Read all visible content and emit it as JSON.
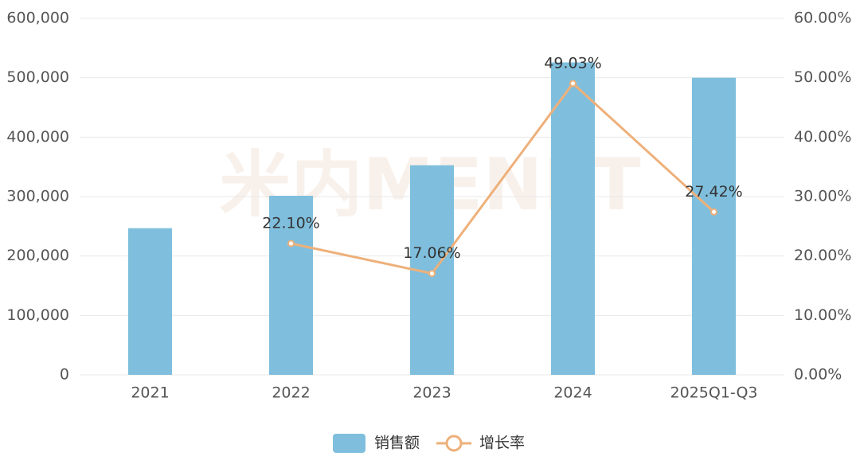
{
  "chart_data": {
    "type": "bar-line",
    "watermark": "米内MENET",
    "categories": [
      "2021",
      "2022",
      "2023",
      "2024",
      "2025Q1-Q3"
    ],
    "series": [
      {
        "name": "销售额",
        "type": "bar",
        "color": "#7fbfdd",
        "values": [
          246800,
          301350,
          352760,
          525720,
          500000
        ]
      },
      {
        "name": "增长率",
        "type": "line",
        "axis": "y2",
        "color": "#eeb07a",
        "values": [
          null,
          22.1,
          17.06,
          49.03,
          27.42
        ],
        "value_labels": [
          null,
          "22.10%",
          "17.06%",
          "49.03%",
          "27.42%"
        ]
      }
    ],
    "ylim": [
      0,
      600000
    ],
    "yticks": [
      0,
      {
        "value": 100000,
        "label": "100,000"
      },
      {
        "value": 200000,
        "label": "200,000"
      },
      {
        "value": 300000,
        "label": "300,000"
      },
      {
        "value": 400000,
        "label": "400,000"
      },
      {
        "value": 500000,
        "label": "500,000"
      },
      {
        "value": 600000,
        "label": "600,000"
      }
    ],
    "y2lim": [
      0,
      60
    ],
    "y2ticks": [
      {
        "value": 0,
        "label": "0.00%"
      },
      {
        "value": 10,
        "label": "10.00%"
      },
      {
        "value": 20,
        "label": "20.00%"
      },
      {
        "value": 30,
        "label": "30.00%"
      },
      {
        "value": 40,
        "label": "40.00%"
      },
      {
        "value": 50,
        "label": "50.00%"
      },
      {
        "value": 60,
        "label": "60.00%"
      }
    ],
    "grid": true,
    "legend": "bottom"
  }
}
